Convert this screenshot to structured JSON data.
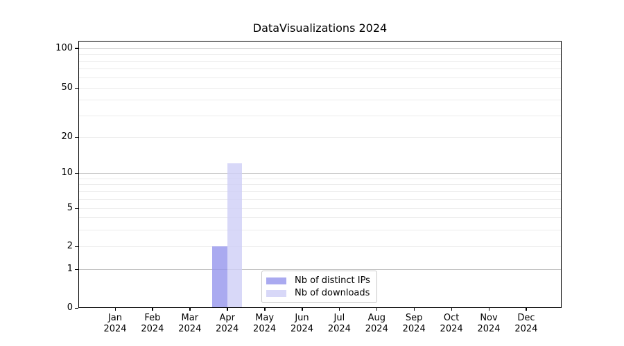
{
  "chart_data": {
    "type": "bar",
    "title": "DataVisualizations 2024",
    "categories": [
      "Jan",
      "Feb",
      "Mar",
      "Apr",
      "May",
      "Jun",
      "Jul",
      "Aug",
      "Sep",
      "Oct",
      "Nov",
      "Dec"
    ],
    "category_year": "2024",
    "series": [
      {
        "name": "Nb of distinct IPs",
        "color": "#9595ec",
        "alpha": 0.8,
        "values": [
          0,
          0,
          0,
          2,
          0,
          0,
          0,
          0,
          0,
          0,
          0,
          0
        ]
      },
      {
        "name": "Nb of downloads",
        "color": "#cecef6",
        "alpha": 0.8,
        "values": [
          0,
          0,
          0,
          12,
          0,
          0,
          0,
          0,
          0,
          0,
          0,
          0
        ]
      }
    ],
    "yticks": [
      0,
      1,
      2,
      5,
      10,
      20,
      50,
      100
    ],
    "major_gridlines": [
      1,
      10,
      100
    ],
    "minor_gridlines": [
      2,
      3,
      4,
      5,
      6,
      7,
      8,
      9,
      20,
      30,
      40,
      50,
      60,
      70,
      80,
      90
    ],
    "scale": "symlog",
    "ylim": [
      0,
      112
    ],
    "grid": true,
    "legend_position": "lower-center"
  },
  "colors": {
    "background": "#ffffff",
    "spine": "#000000",
    "major_grid": "#c3c3c3",
    "minor_grid": "#ebebeb",
    "text": "#000000"
  }
}
